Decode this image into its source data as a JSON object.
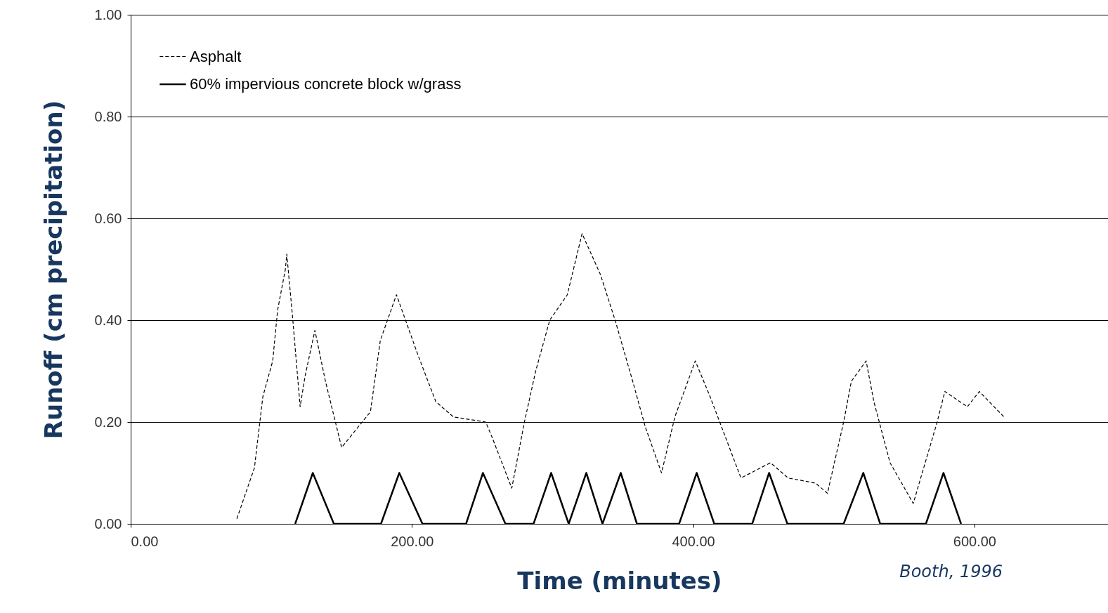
{
  "chart_data": {
    "type": "line",
    "xlabel": "Time (minutes)",
    "ylabel": "Runoff (cm precipitation)",
    "xlim": [
      0,
      695
    ],
    "ylim": [
      0,
      1
    ],
    "xticks": [
      {
        "value": 0,
        "label": "0.00"
      },
      {
        "value": 200,
        "label": "200.00"
      },
      {
        "value": 400,
        "label": "400.00"
      },
      {
        "value": 600,
        "label": "600.00"
      }
    ],
    "yticks": [
      {
        "value": 0,
        "label": "0.00"
      },
      {
        "value": 0.2,
        "label": "0.20"
      },
      {
        "value": 0.4,
        "label": "0.40"
      },
      {
        "value": 0.6,
        "label": "0.60"
      },
      {
        "value": 0.8,
        "label": "0.80"
      },
      {
        "value": 1,
        "label": "1.00"
      }
    ],
    "grid": "y",
    "legend": "top left",
    "annotations": [
      "Booth, 1996"
    ],
    "series": [
      {
        "name": "Asphalt",
        "color": "#000000",
        "line_style": "dashed",
        "x": [
          75.5,
          88,
          94,
          101,
          104.5,
          110,
          111,
          115,
          120.5,
          124,
          131,
          138.5,
          150,
          170.5,
          177.5,
          189,
          204.5,
          217,
          229.5,
          252.5,
          257,
          271,
          280,
          288,
          298,
          310.5,
          321,
          334,
          344.5,
          357,
          366,
          377.5,
          387,
          401.5,
          412,
          434,
          455,
          467.5,
          487,
          495.5,
          507,
          512.5,
          523,
          528.5,
          540,
          556.5,
          573.5,
          579,
          595,
          603.5,
          621
        ],
        "values": [
          0.01,
          0.11,
          0.25,
          0.32,
          0.42,
          0.5,
          0.53,
          0.41,
          0.23,
          0.29,
          0.38,
          0.28,
          0.15,
          0.22,
          0.36,
          0.45,
          0.33,
          0.24,
          0.21,
          0.2,
          0.17,
          0.07,
          0.2,
          0.3,
          0.4,
          0.45,
          0.57,
          0.49,
          0.4,
          0.28,
          0.19,
          0.1,
          0.21,
          0.32,
          0.25,
          0.09,
          0.12,
          0.09,
          0.08,
          0.06,
          0.2,
          0.28,
          0.32,
          0.24,
          0.12,
          0.04,
          0.2,
          0.26,
          0.23,
          0.26,
          0.21
        ]
      },
      {
        "name": "60% impervious concrete block w/grass",
        "color": "#000000",
        "line_style": "solid",
        "x": [
          117,
          129.5,
          144.5,
          178,
          191,
          207.5,
          238.5,
          250.5,
          266.5,
          286.5,
          299,
          311.5,
          324,
          335.5,
          348.5,
          360,
          390,
          402.5,
          415,
          442,
          454,
          467,
          507,
          521,
          533,
          565.5,
          578,
          590.5
        ],
        "values": [
          0,
          0.1,
          0,
          0,
          0.1,
          0,
          0,
          0.1,
          0,
          0,
          0.1,
          0,
          0.1,
          0,
          0.1,
          0,
          0,
          0.1,
          0,
          0,
          0.1,
          0,
          0,
          0.1,
          0,
          0,
          0.1,
          0
        ]
      }
    ]
  }
}
